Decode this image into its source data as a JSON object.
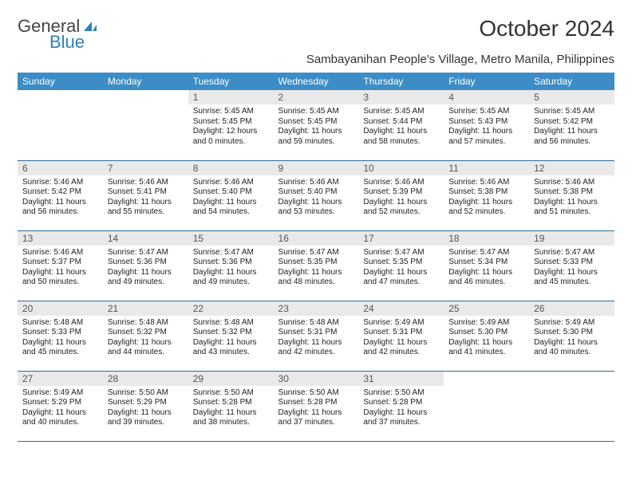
{
  "logo": {
    "text1": "General",
    "text2": "Blue"
  },
  "title": "October 2024",
  "subtitle": "Sambayanihan People's Village, Metro Manila, Philippines",
  "colors": {
    "header_bg": "#3c8dc5",
    "header_text": "#ffffff",
    "daynum_bg": "#e9e9e9",
    "row_border": "#2e6a9e",
    "logo_blue": "#2d7fbf"
  },
  "weekdays": [
    "Sunday",
    "Monday",
    "Tuesday",
    "Wednesday",
    "Thursday",
    "Friday",
    "Saturday"
  ],
  "weeks": [
    [
      {
        "n": "",
        "sr": "",
        "ss": "",
        "dl": ""
      },
      {
        "n": "",
        "sr": "",
        "ss": "",
        "dl": ""
      },
      {
        "n": "1",
        "sr": "Sunrise: 5:45 AM",
        "ss": "Sunset: 5:45 PM",
        "dl": "Daylight: 12 hours and 0 minutes."
      },
      {
        "n": "2",
        "sr": "Sunrise: 5:45 AM",
        "ss": "Sunset: 5:45 PM",
        "dl": "Daylight: 11 hours and 59 minutes."
      },
      {
        "n": "3",
        "sr": "Sunrise: 5:45 AM",
        "ss": "Sunset: 5:44 PM",
        "dl": "Daylight: 11 hours and 58 minutes."
      },
      {
        "n": "4",
        "sr": "Sunrise: 5:45 AM",
        "ss": "Sunset: 5:43 PM",
        "dl": "Daylight: 11 hours and 57 minutes."
      },
      {
        "n": "5",
        "sr": "Sunrise: 5:45 AM",
        "ss": "Sunset: 5:42 PM",
        "dl": "Daylight: 11 hours and 56 minutes."
      }
    ],
    [
      {
        "n": "6",
        "sr": "Sunrise: 5:46 AM",
        "ss": "Sunset: 5:42 PM",
        "dl": "Daylight: 11 hours and 56 minutes."
      },
      {
        "n": "7",
        "sr": "Sunrise: 5:46 AM",
        "ss": "Sunset: 5:41 PM",
        "dl": "Daylight: 11 hours and 55 minutes."
      },
      {
        "n": "8",
        "sr": "Sunrise: 5:46 AM",
        "ss": "Sunset: 5:40 PM",
        "dl": "Daylight: 11 hours and 54 minutes."
      },
      {
        "n": "9",
        "sr": "Sunrise: 5:46 AM",
        "ss": "Sunset: 5:40 PM",
        "dl": "Daylight: 11 hours and 53 minutes."
      },
      {
        "n": "10",
        "sr": "Sunrise: 5:46 AM",
        "ss": "Sunset: 5:39 PM",
        "dl": "Daylight: 11 hours and 52 minutes."
      },
      {
        "n": "11",
        "sr": "Sunrise: 5:46 AM",
        "ss": "Sunset: 5:38 PM",
        "dl": "Daylight: 11 hours and 52 minutes."
      },
      {
        "n": "12",
        "sr": "Sunrise: 5:46 AM",
        "ss": "Sunset: 5:38 PM",
        "dl": "Daylight: 11 hours and 51 minutes."
      }
    ],
    [
      {
        "n": "13",
        "sr": "Sunrise: 5:46 AM",
        "ss": "Sunset: 5:37 PM",
        "dl": "Daylight: 11 hours and 50 minutes."
      },
      {
        "n": "14",
        "sr": "Sunrise: 5:47 AM",
        "ss": "Sunset: 5:36 PM",
        "dl": "Daylight: 11 hours and 49 minutes."
      },
      {
        "n": "15",
        "sr": "Sunrise: 5:47 AM",
        "ss": "Sunset: 5:36 PM",
        "dl": "Daylight: 11 hours and 49 minutes."
      },
      {
        "n": "16",
        "sr": "Sunrise: 5:47 AM",
        "ss": "Sunset: 5:35 PM",
        "dl": "Daylight: 11 hours and 48 minutes."
      },
      {
        "n": "17",
        "sr": "Sunrise: 5:47 AM",
        "ss": "Sunset: 5:35 PM",
        "dl": "Daylight: 11 hours and 47 minutes."
      },
      {
        "n": "18",
        "sr": "Sunrise: 5:47 AM",
        "ss": "Sunset: 5:34 PM",
        "dl": "Daylight: 11 hours and 46 minutes."
      },
      {
        "n": "19",
        "sr": "Sunrise: 5:47 AM",
        "ss": "Sunset: 5:33 PM",
        "dl": "Daylight: 11 hours and 45 minutes."
      }
    ],
    [
      {
        "n": "20",
        "sr": "Sunrise: 5:48 AM",
        "ss": "Sunset: 5:33 PM",
        "dl": "Daylight: 11 hours and 45 minutes."
      },
      {
        "n": "21",
        "sr": "Sunrise: 5:48 AM",
        "ss": "Sunset: 5:32 PM",
        "dl": "Daylight: 11 hours and 44 minutes."
      },
      {
        "n": "22",
        "sr": "Sunrise: 5:48 AM",
        "ss": "Sunset: 5:32 PM",
        "dl": "Daylight: 11 hours and 43 minutes."
      },
      {
        "n": "23",
        "sr": "Sunrise: 5:48 AM",
        "ss": "Sunset: 5:31 PM",
        "dl": "Daylight: 11 hours and 42 minutes."
      },
      {
        "n": "24",
        "sr": "Sunrise: 5:49 AM",
        "ss": "Sunset: 5:31 PM",
        "dl": "Daylight: 11 hours and 42 minutes."
      },
      {
        "n": "25",
        "sr": "Sunrise: 5:49 AM",
        "ss": "Sunset: 5:30 PM",
        "dl": "Daylight: 11 hours and 41 minutes."
      },
      {
        "n": "26",
        "sr": "Sunrise: 5:49 AM",
        "ss": "Sunset: 5:30 PM",
        "dl": "Daylight: 11 hours and 40 minutes."
      }
    ],
    [
      {
        "n": "27",
        "sr": "Sunrise: 5:49 AM",
        "ss": "Sunset: 5:29 PM",
        "dl": "Daylight: 11 hours and 40 minutes."
      },
      {
        "n": "28",
        "sr": "Sunrise: 5:50 AM",
        "ss": "Sunset: 5:29 PM",
        "dl": "Daylight: 11 hours and 39 minutes."
      },
      {
        "n": "29",
        "sr": "Sunrise: 5:50 AM",
        "ss": "Sunset: 5:28 PM",
        "dl": "Daylight: 11 hours and 38 minutes."
      },
      {
        "n": "30",
        "sr": "Sunrise: 5:50 AM",
        "ss": "Sunset: 5:28 PM",
        "dl": "Daylight: 11 hours and 37 minutes."
      },
      {
        "n": "31",
        "sr": "Sunrise: 5:50 AM",
        "ss": "Sunset: 5:28 PM",
        "dl": "Daylight: 11 hours and 37 minutes."
      },
      {
        "n": "",
        "sr": "",
        "ss": "",
        "dl": ""
      },
      {
        "n": "",
        "sr": "",
        "ss": "",
        "dl": ""
      }
    ]
  ]
}
